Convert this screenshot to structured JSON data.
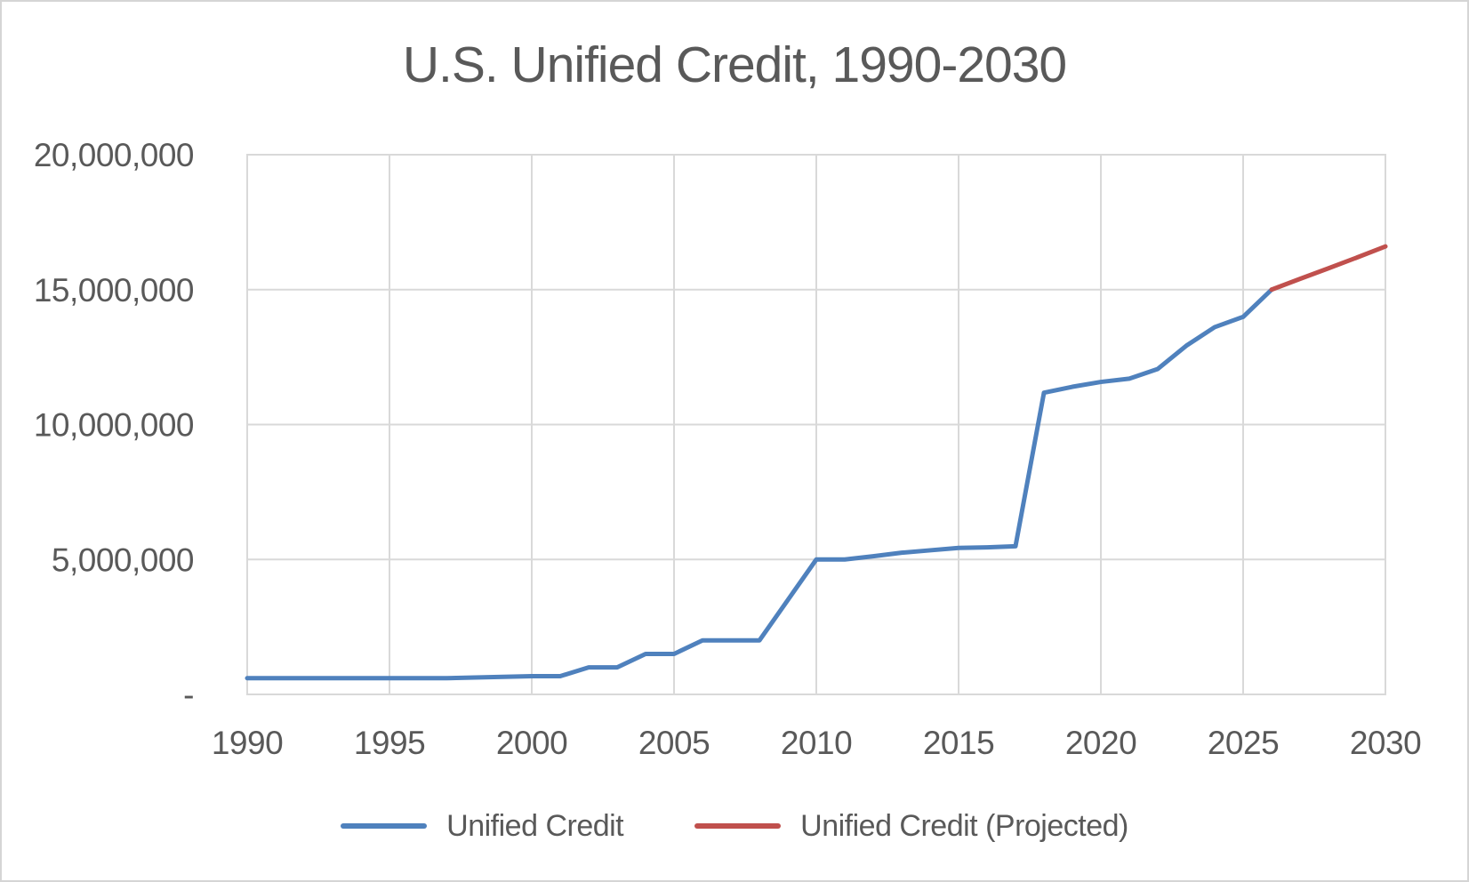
{
  "title": "U.S. Unified Credit, 1990-2030",
  "colors": {
    "actual_line": "#4F81BD",
    "projected_line": "#C0504D",
    "grid": "#D9D9D9",
    "text": "#595959",
    "frame_border": "#D5D5D5",
    "background": "#FFFFFF"
  },
  "legend": [
    {
      "label": "Unified Credit",
      "color": "#4F81BD"
    },
    {
      "label": "Unified Credit (Projected)",
      "color": "#C0504D"
    }
  ],
  "chart_data": {
    "type": "line",
    "title": "U.S. Unified Credit, 1990-2030",
    "xlabel": "",
    "ylabel": "",
    "xlim": [
      1990,
      2030
    ],
    "ylim": [
      0,
      20000000
    ],
    "grid": true,
    "legend_position": "bottom",
    "x_ticks": {
      "values": [
        1990,
        1995,
        2000,
        2005,
        2010,
        2015,
        2020,
        2025,
        2030
      ],
      "labels": [
        "1990",
        "1995",
        "2000",
        "2005",
        "2010",
        "2015",
        "2020",
        "2025",
        "2030"
      ]
    },
    "y_ticks": {
      "values": [
        0,
        5000000,
        10000000,
        15000000,
        20000000
      ],
      "labels": [
        "-",
        "5,000,000",
        "10,000,000",
        "15,000,000",
        "20,000,000"
      ]
    },
    "series": [
      {
        "name": "Unified Credit",
        "color": "#4F81BD",
        "x": [
          1990,
          1991,
          1992,
          1993,
          1994,
          1995,
          1996,
          1997,
          1998,
          1999,
          2000,
          2001,
          2002,
          2003,
          2004,
          2005,
          2006,
          2007,
          2008,
          2009,
          2010,
          2011,
          2012,
          2013,
          2014,
          2015,
          2016,
          2017,
          2018,
          2019,
          2020,
          2021,
          2022,
          2023,
          2024,
          2025,
          2026
        ],
        "y": [
          600000,
          600000,
          600000,
          600000,
          600000,
          600000,
          600000,
          600000,
          625000,
          650000,
          675000,
          675000,
          1000000,
          1000000,
          1500000,
          1500000,
          2000000,
          2000000,
          2000000,
          3500000,
          5000000,
          5000000,
          5120000,
          5250000,
          5340000,
          5430000,
          5450000,
          5490000,
          11180000,
          11400000,
          11580000,
          11700000,
          12060000,
          12920000,
          13610000,
          13990000,
          15000000
        ]
      },
      {
        "name": "Unified Credit (Projected)",
        "color": "#C0504D",
        "x": [
          2026,
          2027,
          2028,
          2029,
          2030
        ],
        "y": [
          15000000,
          15400000,
          15790000,
          16190000,
          16600000
        ]
      }
    ]
  }
}
